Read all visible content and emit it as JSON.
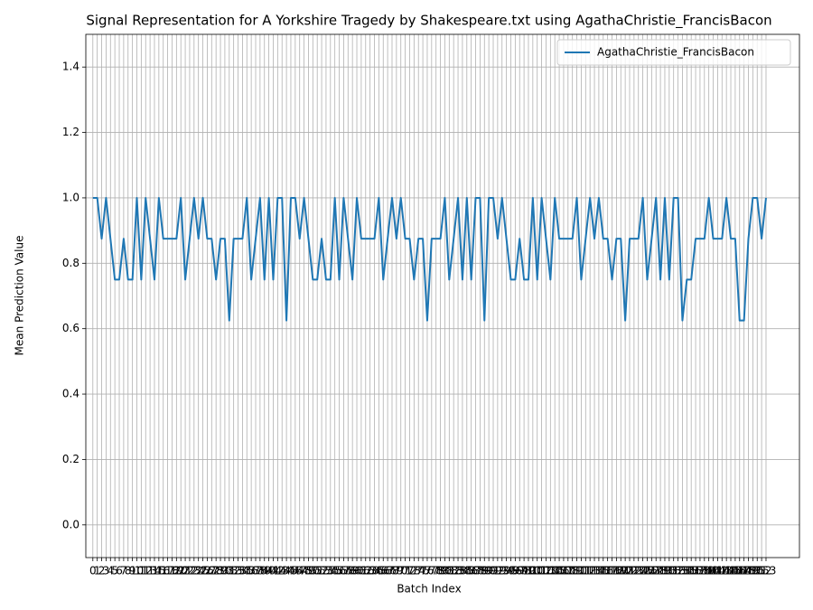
{
  "chart_data": {
    "type": "line",
    "title": "Signal Representation for A Yorkshire Tragedy by Shakespeare.txt using AgathaChristie_FrancisBacon",
    "xlabel": "Batch Index",
    "ylabel": "Mean Prediction Value",
    "x": [
      0,
      1,
      2,
      3,
      4,
      5,
      6,
      7,
      8,
      9,
      10,
      11,
      12,
      13,
      14,
      15,
      16,
      17,
      18,
      19,
      20,
      21,
      22,
      23,
      24,
      25,
      26,
      27,
      28,
      29,
      30,
      31,
      32,
      33,
      34,
      35,
      36,
      37,
      38,
      39,
      40,
      41,
      42,
      43,
      44,
      45,
      46,
      47,
      48,
      49,
      50,
      51,
      52,
      53,
      54,
      55,
      56,
      57,
      58,
      59,
      60,
      61,
      62,
      63,
      64,
      65,
      66,
      67,
      68,
      69,
      70,
      71,
      72,
      73,
      74,
      75,
      76,
      77,
      78,
      79,
      80,
      81,
      82,
      83,
      84,
      85,
      86,
      87,
      88,
      89,
      90,
      91,
      92,
      93,
      94,
      95,
      96,
      97,
      98,
      99,
      100,
      101,
      102,
      103,
      104,
      105,
      106,
      107,
      108,
      109,
      110,
      111,
      112,
      113,
      114,
      115,
      116,
      117,
      118,
      119,
      120,
      121,
      122,
      123,
      124,
      125,
      126,
      127,
      128,
      129,
      130,
      131,
      132,
      133,
      134,
      135,
      136,
      137,
      138,
      139,
      140,
      141,
      142,
      143,
      144,
      145,
      146,
      147,
      148,
      149,
      150,
      151,
      152,
      153
    ],
    "series": [
      {
        "name": "AgathaChristie_FrancisBacon",
        "color": "#1f77b4",
        "values": [
          1,
          1,
          0.875,
          1,
          0.875,
          0.75,
          0.75,
          0.875,
          0.75,
          0.75,
          1,
          0.75,
          1,
          0.875,
          0.75,
          1,
          0.875,
          0.875,
          0.875,
          0.875,
          1,
          0.75,
          0.875,
          1,
          0.875,
          1,
          0.875,
          0.875,
          0.75,
          0.875,
          0.875,
          0.625,
          0.875,
          0.875,
          0.875,
          1,
          0.75,
          0.875,
          1,
          0.75,
          1,
          0.75,
          1,
          1,
          0.625,
          1,
          1,
          0.875,
          1,
          0.875,
          0.75,
          0.75,
          0.875,
          0.75,
          0.75,
          1,
          0.75,
          1,
          0.875,
          0.75,
          1,
          0.875,
          0.875,
          0.875,
          0.875,
          1,
          0.75,
          0.875,
          1,
          0.875,
          1,
          0.875,
          0.875,
          0.75,
          0.875,
          0.875,
          0.625,
          0.875,
          0.875,
          0.875,
          1,
          0.75,
          0.875,
          1,
          0.75,
          1,
          0.75,
          1,
          1,
          0.625,
          1,
          1,
          0.875,
          1,
          0.875,
          0.75,
          0.75,
          0.875,
          0.75,
          0.75,
          1,
          0.75,
          1,
          0.875,
          0.75,
          1,
          0.875,
          0.875,
          0.875,
          0.875,
          1,
          0.75,
          0.875,
          1,
          0.875,
          1,
          0.875,
          0.875,
          0.75,
          0.875,
          0.875,
          0.625,
          0.875,
          0.875,
          0.875,
          1,
          0.75,
          0.875,
          1,
          0.75,
          1,
          0.75,
          1,
          1,
          0.625,
          0.75,
          0.75,
          0.875,
          0.875,
          0.875,
          1,
          0.875,
          0.875,
          0.875,
          1,
          0.875,
          0.875,
          0.625,
          0.625,
          0.875,
          1,
          1,
          0.875,
          1
        ]
      }
    ],
    "xlim": [
      -1.6,
      160.6
    ],
    "xticks": [
      0,
      1,
      2,
      3,
      4,
      5,
      6,
      7,
      8,
      9,
      10,
      11,
      12,
      13,
      14,
      15,
      16,
      17,
      18,
      19,
      20,
      21,
      22,
      23,
      24,
      25,
      26,
      27,
      28,
      29,
      30,
      31,
      32,
      33,
      34,
      35,
      36,
      37,
      38,
      39,
      40,
      41,
      42,
      43,
      44,
      45,
      46,
      47,
      48,
      49,
      50,
      51,
      52,
      53,
      54,
      55,
      56,
      57,
      58,
      59,
      60,
      61,
      62,
      63,
      64,
      65,
      66,
      67,
      68,
      69,
      70,
      71,
      72,
      73,
      74,
      75,
      76,
      77,
      78,
      79,
      80,
      81,
      82,
      83,
      84,
      85,
      86,
      87,
      88,
      89,
      90,
      91,
      92,
      93,
      94,
      95,
      96,
      97,
      98,
      99,
      100,
      101,
      102,
      103,
      104,
      105,
      106,
      107,
      108,
      109,
      110,
      111,
      112,
      113,
      114,
      115,
      116,
      117,
      118,
      119,
      120,
      121,
      122,
      123,
      124,
      125,
      126,
      127,
      128,
      129,
      130,
      131,
      132,
      133,
      134,
      135,
      136,
      137,
      138,
      139,
      140,
      141,
      142,
      143,
      144,
      145,
      146,
      147,
      148,
      149,
      150,
      151,
      152,
      153
    ],
    "ylim": [
      -0.1,
      1.5
    ],
    "yticks": [
      {
        "value": 0,
        "label": "0.0"
      },
      0.2,
      0.4,
      0.6,
      0.8,
      {
        "value": 1,
        "label": "1.0"
      },
      1.2,
      1.4
    ],
    "grid": true,
    "legend": "upper right"
  }
}
